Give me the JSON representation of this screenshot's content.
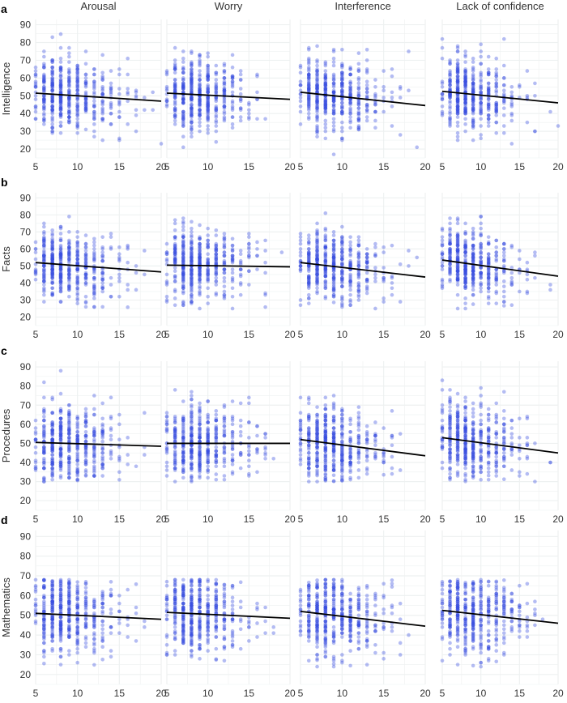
{
  "chart_data": {
    "type": "scatter",
    "columns": [
      "Arousal",
      "Worry",
      "Interference",
      "Lack of confidence"
    ],
    "rows": [
      {
        "panel": "a",
        "ylabel": "Intelligence"
      },
      {
        "panel": "b",
        "ylabel": "Facts"
      },
      {
        "panel": "c",
        "ylabel": "Procedures"
      },
      {
        "panel": "d",
        "ylabel": "Mathematics"
      }
    ],
    "x_ticks": [
      5,
      10,
      15,
      20
    ],
    "y_ticks": [
      20,
      30,
      40,
      50,
      60,
      70,
      80,
      90
    ],
    "xlim": [
      5,
      20
    ],
    "ylim": [
      15,
      93
    ],
    "grid": true,
    "point_color": "#3b4ee0",
    "line_color": "#000000",
    "regression_lines": [
      [
        [
          5,
          51.5,
          20,
          47
        ],
        [
          5,
          51.5,
          20,
          48
        ],
        [
          5,
          52,
          20,
          44.5
        ],
        [
          5,
          52.5,
          20,
          46
        ]
      ],
      [
        [
          5,
          52,
          20,
          46.5
        ],
        [
          5,
          50.5,
          20,
          49.5
        ],
        [
          5,
          52,
          20,
          43.5
        ],
        [
          5,
          53.5,
          20,
          44
        ]
      ],
      [
        [
          5,
          50.5,
          20,
          48.5
        ],
        [
          5,
          50,
          20,
          50
        ],
        [
          5,
          52,
          20,
          43.5
        ],
        [
          5,
          53,
          20,
          45
        ]
      ],
      [
        [
          5,
          51,
          20,
          48
        ],
        [
          5,
          51.5,
          20,
          48.5
        ],
        [
          5,
          52,
          20,
          44.5
        ],
        [
          5,
          52.5,
          20,
          46
        ]
      ]
    ],
    "y_ranges": [
      [
        17,
        85
      ],
      [
        25,
        87
      ],
      [
        30,
        91
      ],
      [
        24,
        68
      ]
    ],
    "n_points_per_panel": 480
  }
}
